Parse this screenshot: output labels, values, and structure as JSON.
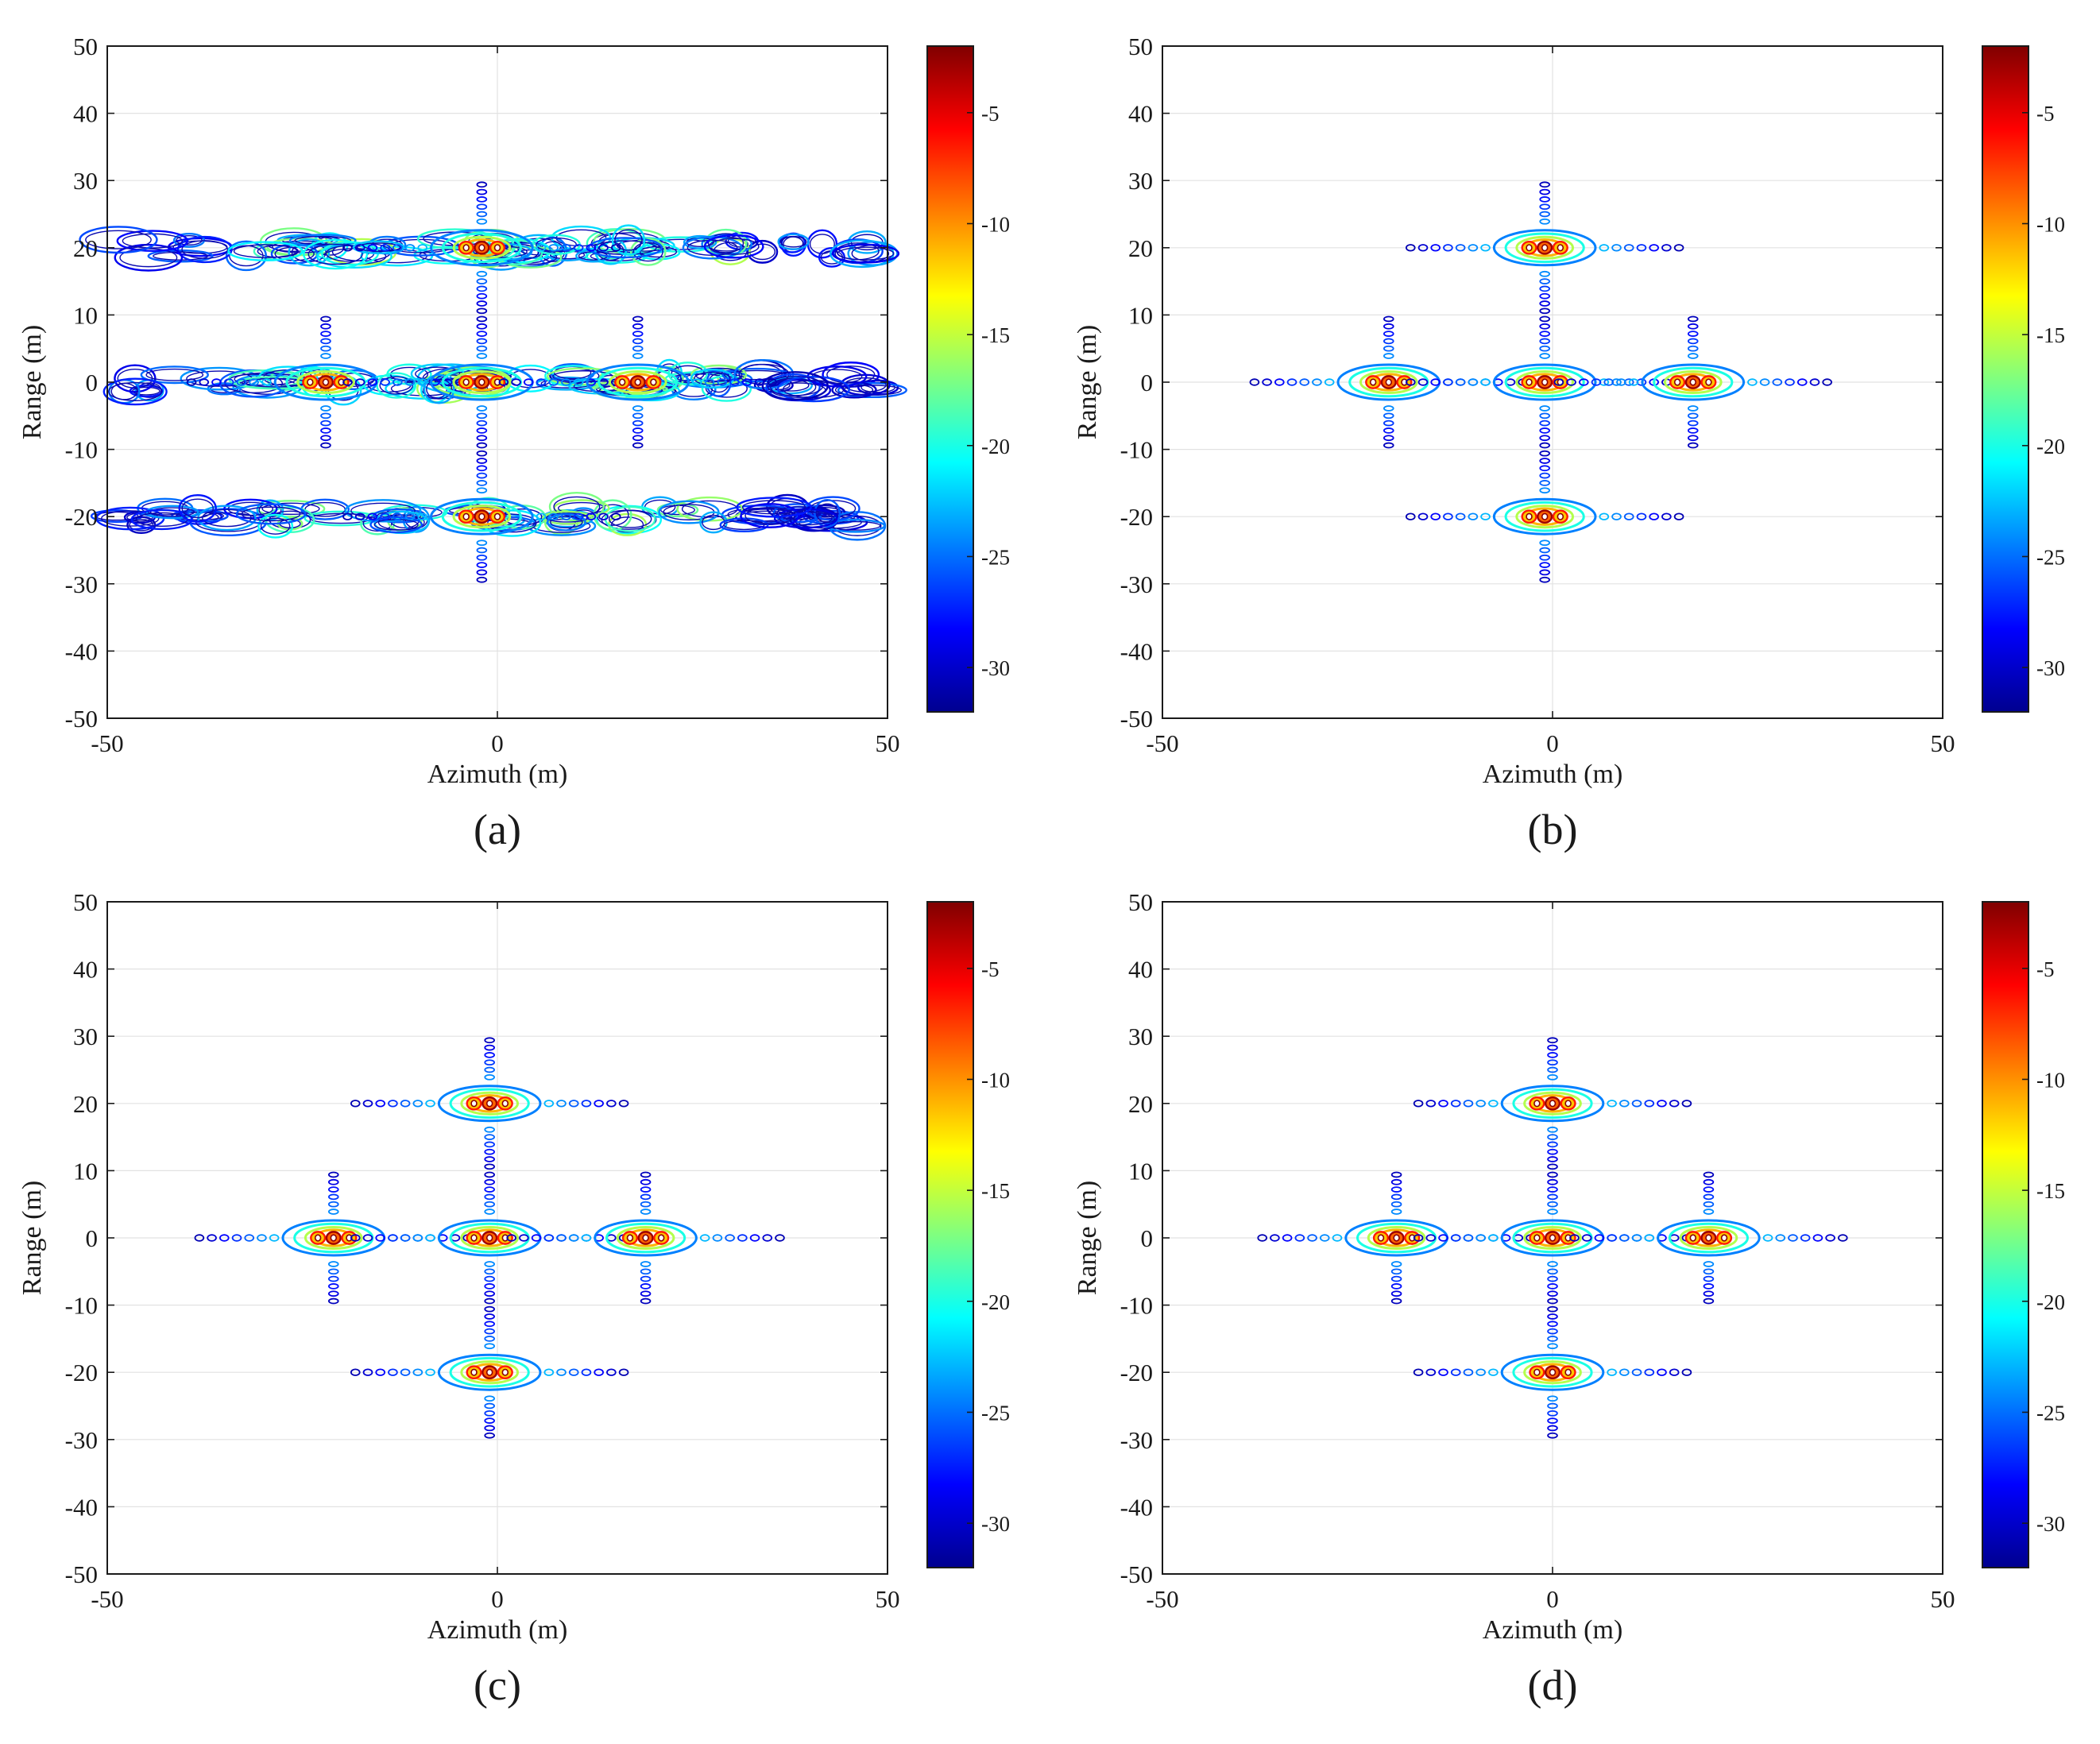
{
  "chart_data": [
    {
      "type": "contour",
      "panel_label": "(a)",
      "xlabel": "Azimuth (m)",
      "ylabel": "Range (m)",
      "xlim": [
        -50,
        50
      ],
      "ylim": [
        -50,
        50
      ],
      "xticks": [
        -50,
        0,
        50
      ],
      "yticks": [
        -50,
        -40,
        -30,
        -20,
        -10,
        0,
        10,
        20,
        30,
        40,
        50
      ],
      "grid": true,
      "colorbar": {
        "range": [
          -32,
          -2
        ],
        "ticks": [
          -5,
          -10,
          -15,
          -20,
          -25,
          -30
        ],
        "colormap": "jet"
      },
      "targets": [
        {
          "x": -22,
          "y": 0
        },
        {
          "x": -2,
          "y": 20
        },
        {
          "x": -2,
          "y": 0
        },
        {
          "x": -2,
          "y": -20
        },
        {
          "x": 18,
          "y": 0
        }
      ],
      "smear_bands_y": [
        20,
        0,
        -20
      ]
    },
    {
      "type": "contour",
      "panel_label": "(b)",
      "xlabel": "Azimuth (m)",
      "ylabel": "Range (m)",
      "xlim": [
        -50,
        50
      ],
      "ylim": [
        -50,
        50
      ],
      "xticks": [
        -50,
        0,
        50
      ],
      "yticks": [
        -50,
        -40,
        -30,
        -20,
        -10,
        0,
        10,
        20,
        30,
        40,
        50
      ],
      "grid": true,
      "colorbar": {
        "range": [
          -32,
          -2
        ],
        "ticks": [
          -5,
          -10,
          -15,
          -20,
          -25,
          -30
        ],
        "colormap": "jet"
      },
      "targets": [
        {
          "x": -21,
          "y": 0
        },
        {
          "x": -1,
          "y": 20
        },
        {
          "x": -1,
          "y": 0
        },
        {
          "x": -1,
          "y": -20
        },
        {
          "x": 18,
          "y": 0
        }
      ],
      "smear_bands_y": []
    },
    {
      "type": "contour",
      "panel_label": "(c)",
      "xlabel": "Azimuth (m)",
      "ylabel": "Range (m)",
      "xlim": [
        -50,
        50
      ],
      "ylim": [
        -50,
        50
      ],
      "xticks": [
        -50,
        0,
        50
      ],
      "yticks": [
        -50,
        -40,
        -30,
        -20,
        -10,
        0,
        10,
        20,
        30,
        40,
        50
      ],
      "grid": true,
      "colorbar": {
        "range": [
          -32,
          -2
        ],
        "ticks": [
          -5,
          -10,
          -15,
          -20,
          -25,
          -30
        ],
        "colormap": "jet"
      },
      "targets": [
        {
          "x": -21,
          "y": 0
        },
        {
          "x": -1,
          "y": 20
        },
        {
          "x": -1,
          "y": 0
        },
        {
          "x": -1,
          "y": -20
        },
        {
          "x": 19,
          "y": 0
        }
      ],
      "smear_bands_y": []
    },
    {
      "type": "contour",
      "panel_label": "(d)",
      "xlabel": "Azimuth (m)",
      "ylabel": "Range (m)",
      "xlim": [
        -50,
        50
      ],
      "ylim": [
        -50,
        50
      ],
      "xticks": [
        -50,
        0,
        50
      ],
      "yticks": [
        -50,
        -40,
        -30,
        -20,
        -10,
        0,
        10,
        20,
        30,
        40,
        50
      ],
      "grid": true,
      "colorbar": {
        "range": [
          -32,
          -2
        ],
        "ticks": [
          -5,
          -10,
          -15,
          -20,
          -25,
          -30
        ],
        "colormap": "jet"
      },
      "targets": [
        {
          "x": -20,
          "y": 0
        },
        {
          "x": 0,
          "y": 20
        },
        {
          "x": 0,
          "y": 0
        },
        {
          "x": 0,
          "y": -20
        },
        {
          "x": 20,
          "y": 0
        }
      ],
      "smear_bands_y": []
    }
  ]
}
